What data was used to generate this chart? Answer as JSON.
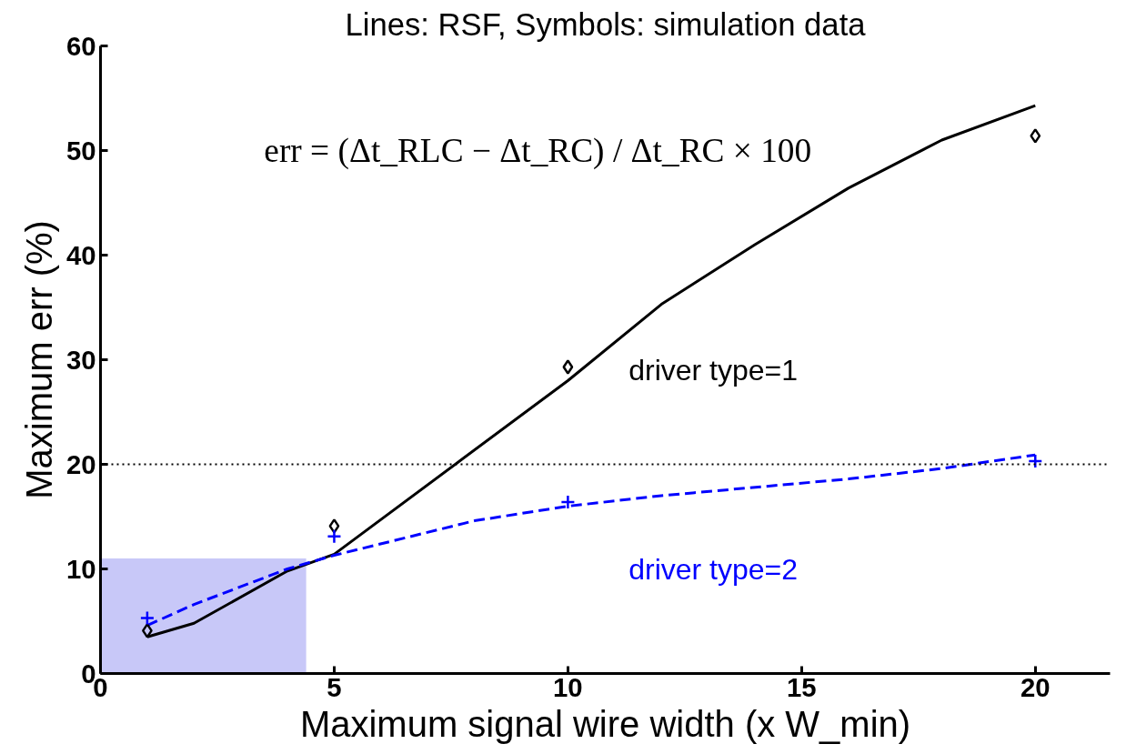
{
  "chart_data": {
    "type": "line",
    "title": "Lines: RSF, Symbols: simulation data",
    "xlabel": "Maximum signal wire width (x W_min)",
    "ylabel": "Maximum err (%)",
    "xlim": [
      0,
      21.6
    ],
    "ylim": [
      0,
      60
    ],
    "xticks": [
      0,
      5,
      10,
      15,
      20
    ],
    "yticks": [
      0,
      10,
      20,
      30,
      40,
      50,
      60
    ],
    "grid": false,
    "series": [
      {
        "type": "area",
        "color": "#c8c8f8",
        "x": [
          0,
          4.4
        ],
        "values": [
          11,
          11
        ]
      },
      {
        "color": "#000000",
        "line_style": "solid",
        "x": [
          1,
          2,
          4,
          5,
          10,
          12,
          14,
          16,
          18,
          20
        ],
        "values": [
          3.5,
          4.8,
          9.8,
          11.4,
          28,
          35.3,
          41,
          46.4,
          51,
          54.3
        ]
      },
      {
        "color": "#0000ff",
        "line_style": "dashed",
        "x": [
          1,
          2,
          4,
          5,
          8,
          10,
          12,
          16,
          18,
          20
        ],
        "values": [
          4.6,
          6.6,
          10,
          11.3,
          14.6,
          16,
          17,
          18.6,
          19.6,
          20.9
        ]
      },
      {
        "type": "scatter",
        "color": "#000000",
        "marker": "diamond",
        "x": [
          1,
          5,
          10,
          20
        ],
        "values": [
          4.1,
          14.1,
          29.3,
          51.4
        ]
      },
      {
        "type": "scatter",
        "color": "#0000ff",
        "marker": "cross",
        "x": [
          1,
          5,
          10,
          20
        ],
        "values": [
          5.3,
          13.1,
          16.4,
          20.3
        ]
      }
    ],
    "ref_lines": [
      {
        "axis": "y",
        "value": 20,
        "color": "#000000",
        "line_style": "dotted"
      }
    ],
    "annotations": [
      "err = (Δt_RLC − Δt_RC) / Δt_RC × 100",
      "driver type=1",
      "driver type=2"
    ]
  }
}
